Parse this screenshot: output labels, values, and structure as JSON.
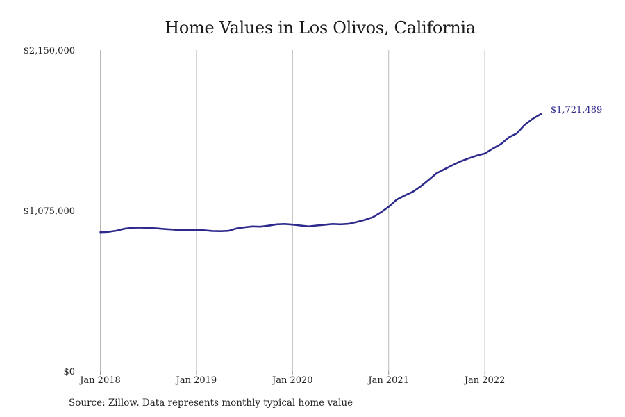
{
  "chart_data": {
    "type": "line",
    "title": "Home Values in Los Olivos, California",
    "xlabel": "",
    "ylabel": "",
    "ylim": [
      0,
      2150000
    ],
    "x_ticks": [
      "Jan 2018",
      "Jan 2019",
      "Jan 2020",
      "Jan 2021",
      "Jan 2022"
    ],
    "y_ticks": [
      {
        "value": 0,
        "label": "$0"
      },
      {
        "value": 1075000,
        "label": "$1,075,000"
      },
      {
        "value": 2150000,
        "label": "$2,150,000"
      }
    ],
    "grid": "vertical",
    "line_color": "#2e2a8c",
    "end_label": "$1,721,489",
    "series": [
      {
        "x": [
          "2018-01",
          "2018-02",
          "2018-03",
          "2018-04",
          "2018-05",
          "2018-06",
          "2018-07",
          "2018-08",
          "2018-09",
          "2018-10",
          "2018-11",
          "2018-12",
          "2019-01",
          "2019-02",
          "2019-03",
          "2019-04",
          "2019-05",
          "2019-06",
          "2019-07",
          "2019-08",
          "2019-09",
          "2019-10",
          "2019-11",
          "2019-12",
          "2020-01",
          "2020-02",
          "2020-03",
          "2020-04",
          "2020-05",
          "2020-06",
          "2020-07",
          "2020-08",
          "2020-09",
          "2020-10",
          "2020-11",
          "2020-12",
          "2021-01",
          "2021-02",
          "2021-03",
          "2021-04",
          "2021-05",
          "2021-06",
          "2021-07",
          "2021-08",
          "2021-09",
          "2021-10",
          "2021-11",
          "2021-12",
          "2022-01",
          "2022-02",
          "2022-03",
          "2022-04",
          "2022-05",
          "2022-06",
          "2022-07",
          "2022-08"
        ],
        "values": [
          930000,
          932000,
          940000,
          953000,
          960000,
          961000,
          958000,
          956000,
          951000,
          948000,
          944000,
          945000,
          946000,
          943000,
          938000,
          937000,
          939000,
          955000,
          963000,
          969000,
          967000,
          974000,
          983000,
          985000,
          981000,
          975000,
          969000,
          975000,
          980000,
          985000,
          983000,
          986000,
          998000,
          1012000,
          1030000,
          1062000,
          1100000,
          1148000,
          1176000,
          1200000,
          1237000,
          1280000,
          1326000,
          1353000,
          1380000,
          1405000,
          1425000,
          1443000,
          1457000,
          1490000,
          1520000,
          1565000,
          1592000,
          1650000,
          1690000,
          1721489
        ]
      }
    ]
  },
  "source": "Source: Zillow. Data represents monthly typical home value"
}
